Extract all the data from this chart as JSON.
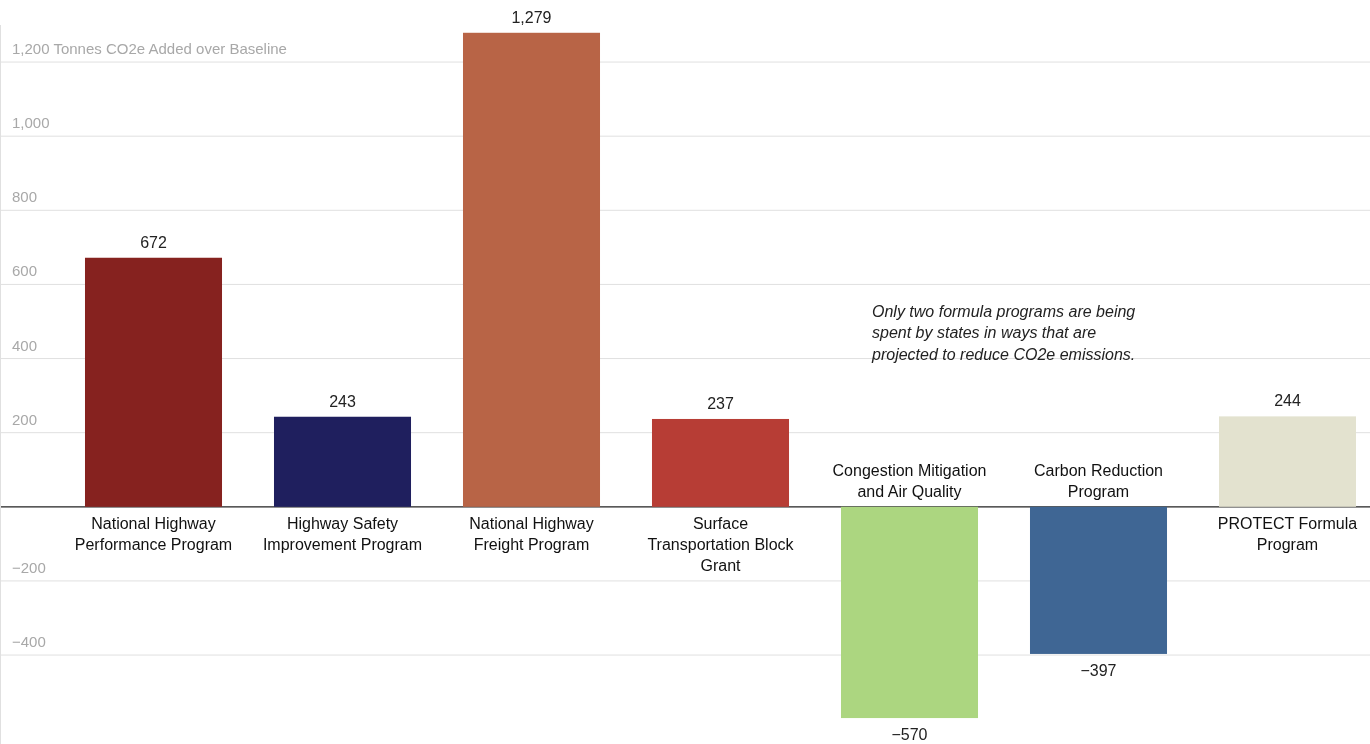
{
  "chart_data": {
    "type": "bar",
    "categories": [
      "National Highway Performance Program",
      "Highway Safety Improvement Program",
      "National Highway Freight Program",
      "Surface Transportation Block Grant",
      "Congestion Mitigation and Air Quality",
      "Carbon Reduction Program",
      "PROTECT Formula Program"
    ],
    "values": [
      672,
      243,
      1279,
      237,
      -570,
      -397,
      244
    ],
    "colors": [
      "#86221f",
      "#1f1f5e",
      "#b86446",
      "#b73d35",
      "#acd680",
      "#3f6694",
      "#e3e2cf"
    ],
    "ylim": [
      -640,
      1300
    ],
    "yticks": [
      {
        "value": -400,
        "label": "−400"
      },
      {
        "value": -200,
        "label": "−200"
      },
      {
        "value": 0,
        "label": null
      },
      200,
      400,
      600,
      800,
      {
        "value": 1000,
        "label": "1,000"
      },
      {
        "value": 1200,
        "label": "1,200 Tonnes CO2e Added over Baseline"
      }
    ],
    "grid": "y",
    "value_labels": [
      "672",
      "243",
      "1,279",
      "237",
      "−570",
      "−397",
      "244"
    ],
    "annotations": [
      "Only two formula programs are being spent by states in ways that are projected to reduce CO2e emissions."
    ]
  }
}
